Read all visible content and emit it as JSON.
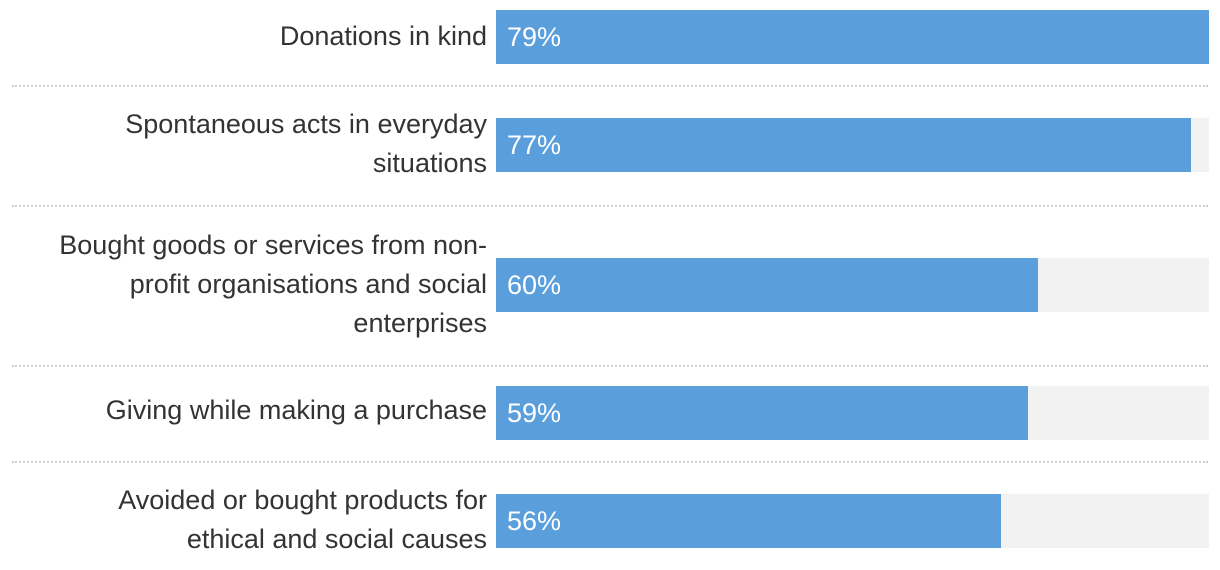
{
  "chart_data": {
    "type": "bar",
    "orientation": "horizontal",
    "title": "",
    "xlabel": "",
    "ylabel": "",
    "xlim": [
      0,
      79
    ],
    "categories": [
      "Donations in kind",
      "Spontaneous acts in everyday situations",
      "Bought goods or services from non-profit organisations and social enterprises",
      "Giving while making a purchase",
      "Avoided or bought products for ethical and social causes"
    ],
    "values": [
      79,
      77,
      60,
      59,
      56
    ],
    "value_labels": [
      "79%",
      "77%",
      "60%",
      "59%",
      "56%"
    ],
    "colors": {
      "bar": "#5b9edc",
      "track": "#f2f2f2",
      "label": "#333333",
      "value_text": "#ffffff",
      "divider": "#cfcfcf"
    }
  }
}
